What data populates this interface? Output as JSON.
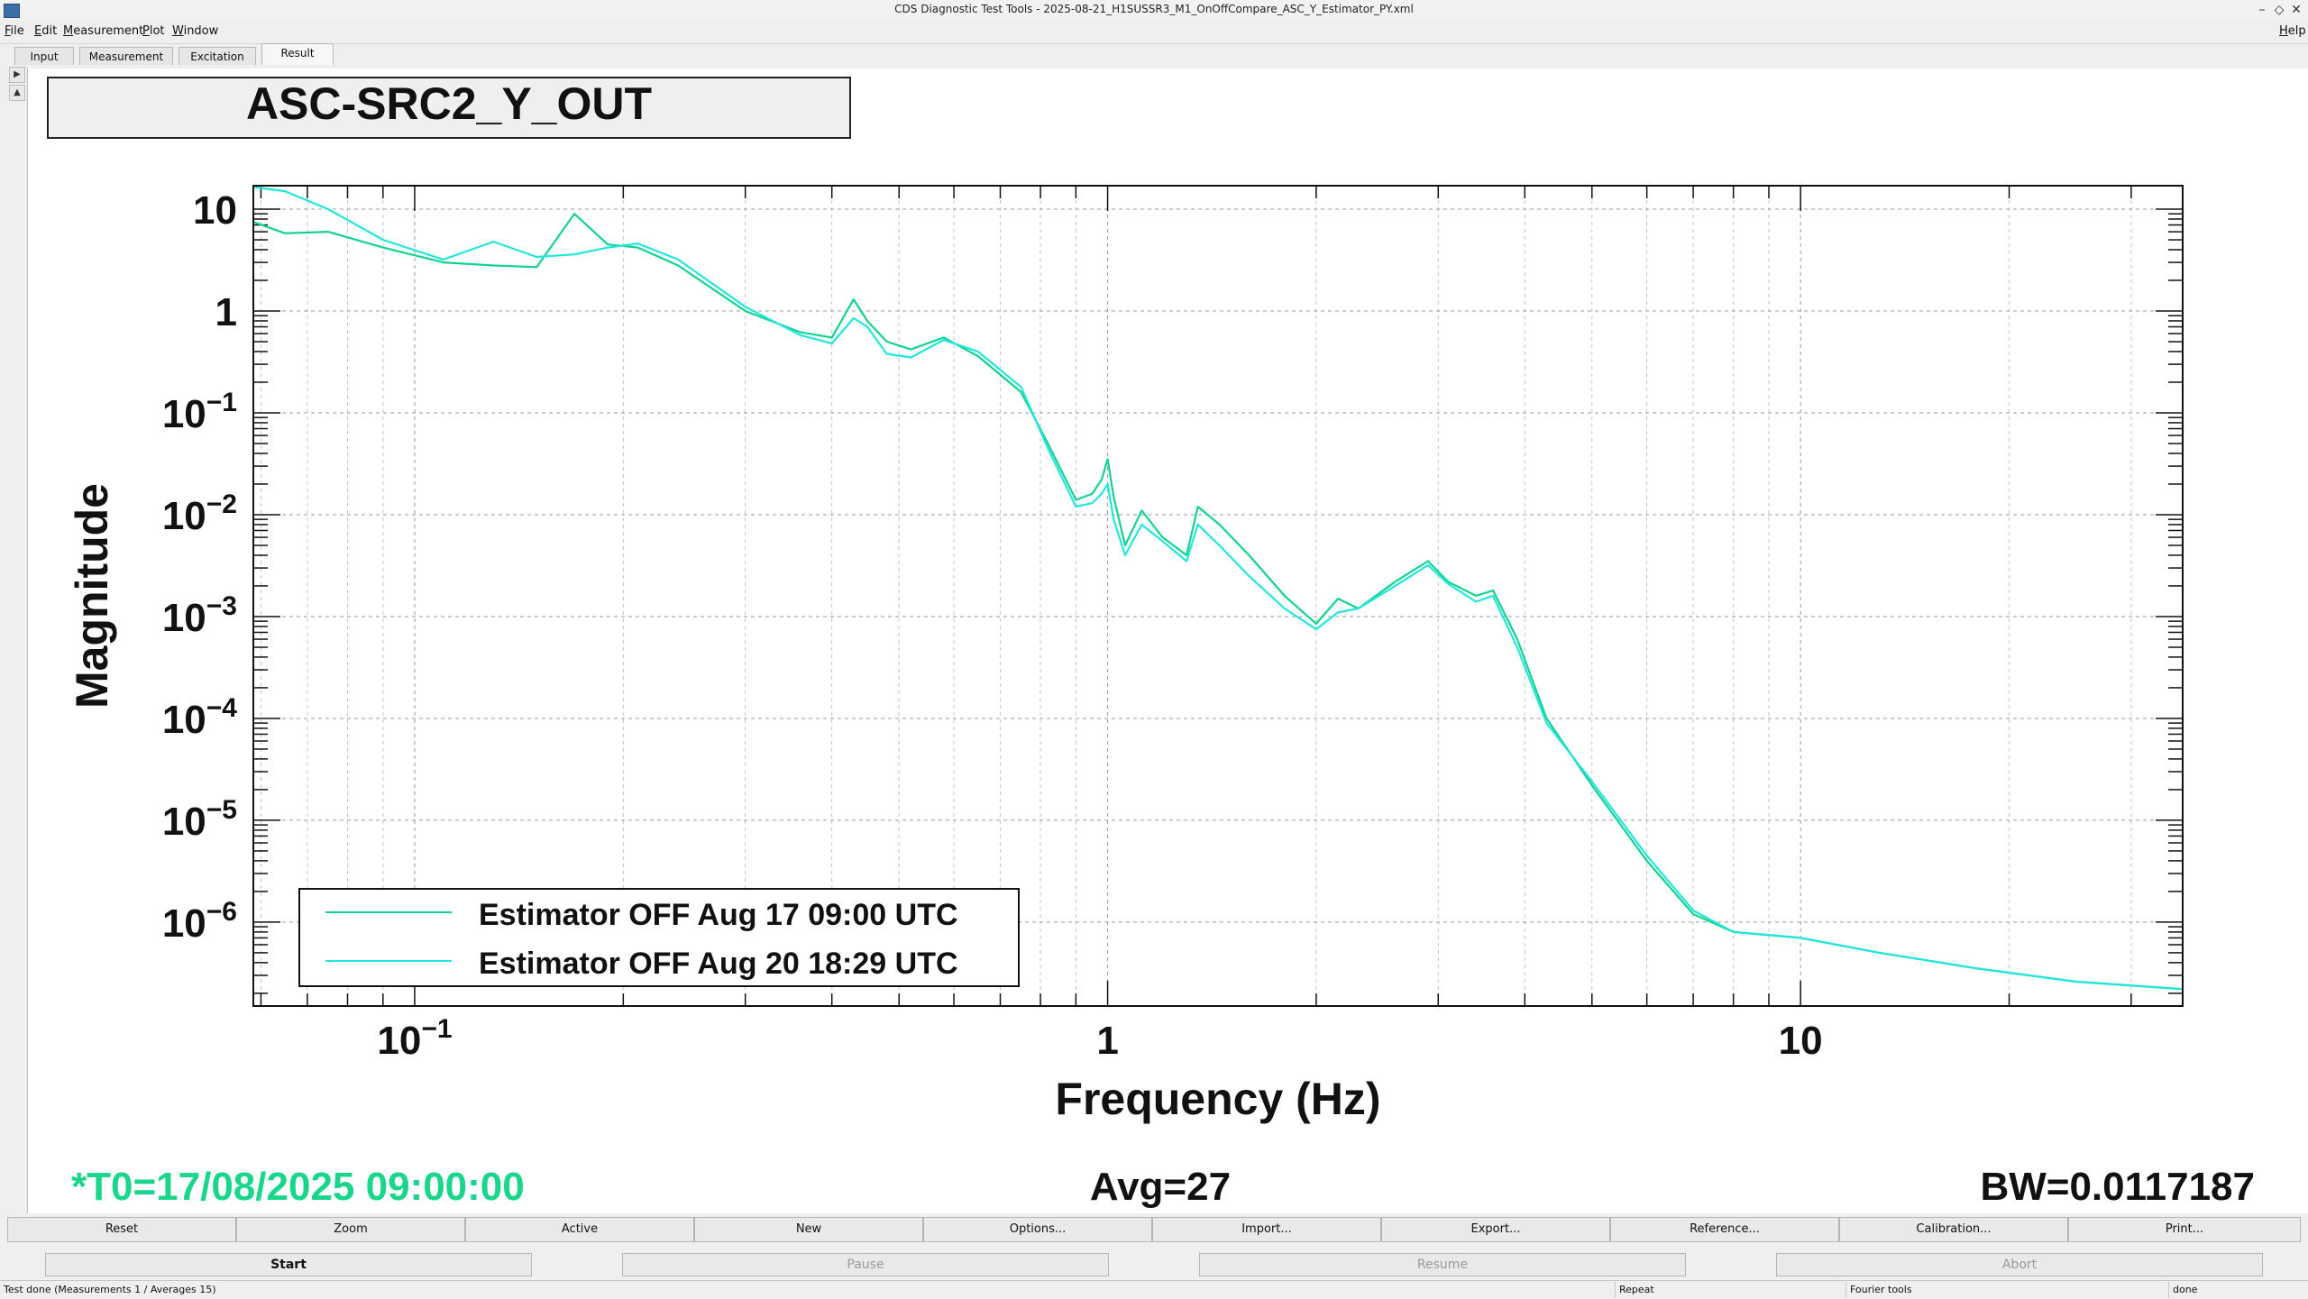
{
  "window": {
    "title": "CDS Diagnostic Test Tools - 2025-08-21_H1SUSSR3_M1_OnOffCompare_ASC_Y_Estimator_PY.xml"
  },
  "menu": {
    "file": "File",
    "edit": "Edit",
    "measurement": "Measurement",
    "plot": "Plot",
    "window": "Window",
    "help": "Help"
  },
  "tabs": {
    "input": "Input",
    "measurement": "Measurement",
    "excitation": "Excitation",
    "result": "Result"
  },
  "plot": {
    "title": "ASC-SRC2_Y_OUT",
    "t0": "*T0=17/08/2025 09:00:00",
    "avg": "Avg=27",
    "bw": "BW=0.0117187"
  },
  "colors": {
    "series1": "#11d38f",
    "series2": "#22e6dc",
    "t0_text": "#1ad68a"
  },
  "chart_data": {
    "type": "line",
    "xlabel": "Frequency (Hz)",
    "ylabel": "Magnitude",
    "x_scale": "log",
    "y_scale": "log",
    "xlim": [
      0.0585,
      35.6
    ],
    "ylim": [
      1.5e-07,
      17.0
    ],
    "x_ticks": [
      {
        "value": 0.1,
        "base": "10",
        "exp": "−1"
      },
      {
        "value": 1,
        "base": "1",
        "exp": ""
      },
      {
        "value": 10,
        "base": "10",
        "exp": ""
      }
    ],
    "y_ticks": [
      {
        "value": 10,
        "base": "10",
        "exp": ""
      },
      {
        "value": 1,
        "base": "1",
        "exp": ""
      },
      {
        "value": 0.1,
        "base": "10",
        "exp": "−1"
      },
      {
        "value": 0.01,
        "base": "10",
        "exp": "−2"
      },
      {
        "value": 0.001,
        "base": "10",
        "exp": "−3"
      },
      {
        "value": 0.0001,
        "base": "10",
        "exp": "−4"
      },
      {
        "value": 1e-05,
        "base": "10",
        "exp": "−5"
      },
      {
        "value": 1e-06,
        "base": "10",
        "exp": "−6"
      }
    ],
    "grid": true,
    "legend_position": "bottom-left",
    "series": [
      {
        "name": "Estimator OFF Aug 17 09:00 UTC",
        "color": "#11d38f",
        "x": [
          0.0585,
          0.065,
          0.075,
          0.09,
          0.11,
          0.13,
          0.15,
          0.17,
          0.19,
          0.21,
          0.24,
          0.3,
          0.36,
          0.4,
          0.43,
          0.45,
          0.48,
          0.52,
          0.58,
          0.65,
          0.75,
          0.82,
          0.9,
          0.95,
          0.98,
          1.0,
          1.02,
          1.06,
          1.12,
          1.2,
          1.3,
          1.35,
          1.45,
          1.6,
          1.8,
          2.0,
          2.15,
          2.3,
          2.6,
          2.9,
          3.1,
          3.4,
          3.6,
          3.9,
          4.3,
          5,
          6,
          7,
          8,
          10,
          13,
          18,
          25,
          35.6
        ],
        "y": [
          7.5,
          5.8,
          6.0,
          4.2,
          3.0,
          2.8,
          2.7,
          9.0,
          4.5,
          4.2,
          2.8,
          1.0,
          0.62,
          0.55,
          1.3,
          0.8,
          0.5,
          0.42,
          0.55,
          0.36,
          0.16,
          0.05,
          0.014,
          0.016,
          0.022,
          0.035,
          0.015,
          0.005,
          0.011,
          0.006,
          0.004,
          0.012,
          0.008,
          0.004,
          0.0016,
          0.00085,
          0.0015,
          0.0012,
          0.0022,
          0.0035,
          0.0022,
          0.0016,
          0.0018,
          0.0006,
          0.0001,
          2.2e-05,
          4e-06,
          1.2e-06,
          8e-07,
          7e-07,
          5e-07,
          3.5e-07,
          2.6e-07,
          2.2e-07
        ]
      },
      {
        "name": "Estimator OFF Aug 20 18:29 UTC",
        "color": "#22e6dc",
        "x": [
          0.0585,
          0.065,
          0.075,
          0.09,
          0.11,
          0.13,
          0.15,
          0.17,
          0.19,
          0.21,
          0.24,
          0.3,
          0.36,
          0.4,
          0.43,
          0.45,
          0.48,
          0.52,
          0.58,
          0.65,
          0.75,
          0.82,
          0.9,
          0.95,
          0.98,
          1.0,
          1.02,
          1.06,
          1.12,
          1.2,
          1.3,
          1.35,
          1.45,
          1.6,
          1.8,
          2.0,
          2.15,
          2.3,
          2.6,
          2.9,
          3.1,
          3.4,
          3.6,
          3.9,
          4.3,
          5,
          6,
          7,
          8,
          10,
          13,
          18,
          25,
          35.6
        ],
        "y": [
          16.5,
          15.0,
          10.0,
          5.0,
          3.2,
          4.8,
          3.4,
          3.6,
          4.2,
          4.6,
          3.2,
          1.1,
          0.58,
          0.48,
          0.85,
          0.7,
          0.38,
          0.35,
          0.52,
          0.4,
          0.18,
          0.045,
          0.012,
          0.013,
          0.016,
          0.02,
          0.009,
          0.004,
          0.008,
          0.0055,
          0.0035,
          0.008,
          0.005,
          0.0025,
          0.0012,
          0.00075,
          0.0011,
          0.0012,
          0.002,
          0.0032,
          0.0021,
          0.0014,
          0.0016,
          0.0005,
          9e-05,
          2.4e-05,
          4.5e-06,
          1.3e-06,
          8e-07,
          7e-07,
          5e-07,
          3.5e-07,
          2.6e-07,
          2.2e-07
        ]
      }
    ]
  },
  "buttons": {
    "reset": "Reset",
    "zoom": "Zoom",
    "active": "Active",
    "new": "New",
    "options": "Options...",
    "import": "Import...",
    "export": "Export...",
    "reference": "Reference...",
    "calibration": "Calibration...",
    "print": "Print..."
  },
  "run": {
    "start": "Start",
    "pause": "Pause",
    "resume": "Resume",
    "abort": "Abort"
  },
  "status": {
    "main": "Test done (Measurements 1 / Averages 15)",
    "repeat": "Repeat",
    "tools": "Fourier tools",
    "state": "done"
  }
}
